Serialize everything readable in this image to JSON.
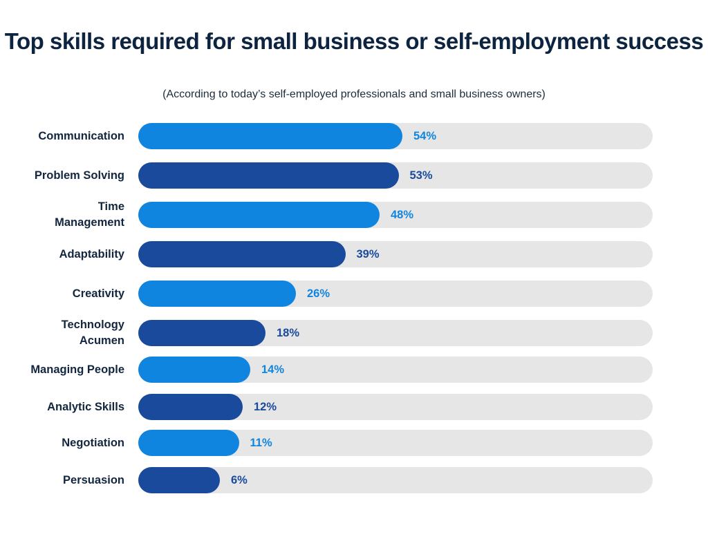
{
  "chart_data": {
    "type": "bar",
    "orientation": "horizontal",
    "title": "Top skills required for small business or self-employment success",
    "subtitle": "(According to today’s self-employed professionals and small business owners)",
    "categories": [
      "Communication",
      "Problem Solving",
      "Time Management",
      "Adaptability",
      "Creativity",
      "Technology Acumen",
      "Managing People",
      "Analytic Skills",
      "Negotiation",
      "Persuasion"
    ],
    "values": [
      54,
      53,
      48,
      39,
      26,
      18,
      14,
      12,
      11,
      6
    ],
    "value_labels": [
      "54%",
      "53%",
      "48%",
      "39%",
      "26%",
      "18%",
      "14%",
      "12%",
      "11%",
      "6%"
    ],
    "unit": "%",
    "xlim": [
      0,
      100
    ],
    "grid": false,
    "colors": {
      "light": "#1085E0",
      "dark": "#194A9C",
      "track": "#E6E6E6",
      "text": "#12263F"
    }
  }
}
